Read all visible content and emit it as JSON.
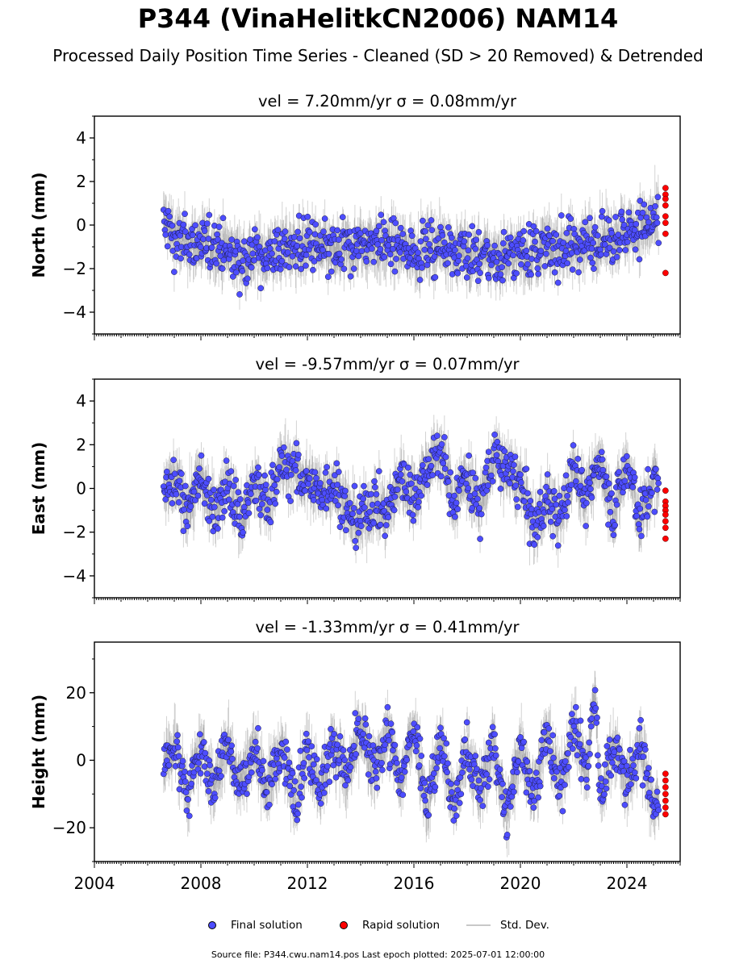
{
  "figure": {
    "title": "P344 (VinaHelitkCN2006) NAM14",
    "subtitle": "Processed Daily Position Time Series - Cleaned (SD > 20 Removed) & Detrended",
    "footer": "Source file: P344.cwu.nam14.pos  Last epoch plotted: 2025-07-01 12:00:00"
  },
  "colors": {
    "final": "#4d4dff",
    "rapid": "#ff0000",
    "stddev": "#808080",
    "axis": "#000000"
  },
  "legend": [
    {
      "label": "Final solution",
      "marker": "dot",
      "color": "#4d4dff"
    },
    {
      "label": "Rapid solution",
      "marker": "dot",
      "color": "#ff0000"
    },
    {
      "label": "Std. Dev.",
      "marker": "line",
      "color": "#c8c8c8"
    }
  ],
  "chart_data": [
    {
      "type": "scatter",
      "title": "vel = 7.20mm/yr   σ = 0.08mm/yr",
      "ylabel": "North (mm)",
      "xlim": [
        2004,
        2026
      ],
      "ylim": [
        -5,
        5
      ],
      "yticks": [
        -4,
        -2,
        0,
        2,
        4
      ],
      "xticks": [
        2004,
        2008,
        2012,
        2016,
        2020,
        2024
      ],
      "show_xtick_labels": false,
      "final_span": [
        2006.6,
        2025.2
      ],
      "rapid_span": [
        2025.3,
        2025.5
      ],
      "series": [
        {
          "name": "Final solution",
          "points": [
            [
              2006.7,
              0.1
            ],
            [
              2007,
              -0.6
            ],
            [
              2007.5,
              -0.9
            ],
            [
              2008,
              -0.8
            ],
            [
              2008.5,
              -1.0
            ],
            [
              2009,
              -1.2
            ],
            [
              2009.5,
              -1.5
            ],
            [
              2010,
              -1.4
            ],
            [
              2010.5,
              -1.3
            ],
            [
              2011,
              -1.1
            ],
            [
              2011.5,
              -1.0
            ],
            [
              2012,
              -0.9
            ],
            [
              2012.5,
              -1.1
            ],
            [
              2013,
              -1.3
            ],
            [
              2013.5,
              -1.2
            ],
            [
              2014,
              -0.9
            ],
            [
              2014.5,
              -0.8
            ],
            [
              2015,
              -1.0
            ],
            [
              2015.5,
              -1.1
            ],
            [
              2016,
              -1.2
            ],
            [
              2016.5,
              -1.0
            ],
            [
              2017,
              -0.9
            ],
            [
              2017.5,
              -1.1
            ],
            [
              2018,
              -1.3
            ],
            [
              2018.5,
              -1.4
            ],
            [
              2019,
              -1.5
            ],
            [
              2019.5,
              -1.4
            ],
            [
              2020,
              -1.3
            ],
            [
              2020.5,
              -1.2
            ],
            [
              2021,
              -1.1
            ],
            [
              2021.5,
              -1.0
            ],
            [
              2022,
              -0.9
            ],
            [
              2022.5,
              -0.8
            ],
            [
              2023,
              -0.6
            ],
            [
              2023.5,
              -0.5
            ],
            [
              2024,
              -0.3
            ],
            [
              2024.5,
              -0.1
            ],
            [
              2025,
              0.2
            ]
          ]
        },
        {
          "name": "Rapid solution",
          "points": [
            [
              2025.45,
              1.7
            ],
            [
              2025.45,
              1.4
            ],
            [
              2025.45,
              1.2
            ],
            [
              2025.45,
              0.9
            ],
            [
              2025.45,
              0.4
            ],
            [
              2025.45,
              0.1
            ],
            [
              2025.45,
              -0.4
            ],
            [
              2025.45,
              -2.2
            ]
          ]
        }
      ]
    },
    {
      "type": "scatter",
      "title": "vel = -9.57mm/yr   σ = 0.07mm/yr",
      "ylabel": "East (mm)",
      "xlim": [
        2004,
        2026
      ],
      "ylim": [
        -5,
        5
      ],
      "yticks": [
        -4,
        -2,
        0,
        2,
        4
      ],
      "xticks": [
        2004,
        2008,
        2012,
        2016,
        2020,
        2024
      ],
      "show_xtick_labels": false,
      "final_span": [
        2006.6,
        2025.2
      ],
      "rapid_span": [
        2025.3,
        2025.5
      ],
      "series": [
        {
          "name": "Final solution",
          "points": [
            [
              2006.7,
              -0.2
            ],
            [
              2007,
              0.3
            ],
            [
              2007.5,
              -0.8
            ],
            [
              2008,
              0.5
            ],
            [
              2008.5,
              -1.2
            ],
            [
              2009,
              0.4
            ],
            [
              2009.5,
              -1.5
            ],
            [
              2010,
              0.2
            ],
            [
              2010.5,
              -0.9
            ],
            [
              2011,
              1.2
            ],
            [
              2011.5,
              0.8
            ],
            [
              2012,
              0.3
            ],
            [
              2012.5,
              -0.1
            ],
            [
              2013,
              0.2
            ],
            [
              2013.5,
              -1.0
            ],
            [
              2014,
              -1.6
            ],
            [
              2014.5,
              -0.5
            ],
            [
              2015,
              -1.2
            ],
            [
              2015.5,
              0.5
            ],
            [
              2016,
              -0.3
            ],
            [
              2016.5,
              1.0
            ],
            [
              2017,
              1.8
            ],
            [
              2017.5,
              -0.5
            ],
            [
              2018,
              0.6
            ],
            [
              2018.5,
              -0.8
            ],
            [
              2019,
              1.5
            ],
            [
              2019.5,
              0.8
            ],
            [
              2020,
              0.2
            ],
            [
              2020.5,
              -1.8
            ],
            [
              2021,
              -0.4
            ],
            [
              2021.5,
              -1.5
            ],
            [
              2022,
              1.0
            ],
            [
              2022.5,
              -0.6
            ],
            [
              2023,
              1.4
            ],
            [
              2023.5,
              -1.2
            ],
            [
              2024,
              1.2
            ],
            [
              2024.5,
              -1.5
            ],
            [
              2025,
              0.3
            ]
          ]
        },
        {
          "name": "Rapid solution",
          "points": [
            [
              2025.45,
              -0.1
            ],
            [
              2025.45,
              -0.6
            ],
            [
              2025.45,
              -0.8
            ],
            [
              2025.45,
              -1.0
            ],
            [
              2025.45,
              -1.2
            ],
            [
              2025.45,
              -1.5
            ],
            [
              2025.45,
              -1.8
            ],
            [
              2025.45,
              -2.3
            ]
          ]
        }
      ]
    },
    {
      "type": "scatter",
      "title": "vel = -1.33mm/yr   σ = 0.41mm/yr",
      "ylabel": "Height (mm)",
      "xlim": [
        2004,
        2026
      ],
      "ylim": [
        -30,
        35
      ],
      "yticks": [
        -20,
        0,
        20
      ],
      "xticks": [
        2004,
        2008,
        2012,
        2016,
        2020,
        2024
      ],
      "show_xtick_labels": true,
      "final_span": [
        2006.6,
        2025.2
      ],
      "rapid_span": [
        2025.3,
        2025.5
      ],
      "series": [
        {
          "name": "Final solution",
          "points": [
            [
              2006.7,
              0
            ],
            [
              2007,
              5
            ],
            [
              2007.5,
              -10
            ],
            [
              2008,
              3
            ],
            [
              2008.5,
              -8
            ],
            [
              2009,
              6
            ],
            [
              2009.5,
              -7
            ],
            [
              2010,
              5
            ],
            [
              2010.5,
              -9
            ],
            [
              2011,
              4
            ],
            [
              2011.5,
              -12
            ],
            [
              2012,
              3
            ],
            [
              2012.5,
              -8
            ],
            [
              2013,
              6
            ],
            [
              2013.5,
              -6
            ],
            [
              2014,
              10
            ],
            [
              2014.5,
              -5
            ],
            [
              2015,
              9
            ],
            [
              2015.5,
              -8
            ],
            [
              2016,
              11
            ],
            [
              2016.5,
              -14
            ],
            [
              2017,
              7
            ],
            [
              2017.5,
              -15
            ],
            [
              2018,
              4
            ],
            [
              2018.5,
              -10
            ],
            [
              2019,
              5
            ],
            [
              2019.5,
              -18
            ],
            [
              2020,
              6
            ],
            [
              2020.5,
              -10
            ],
            [
              2021,
              8
            ],
            [
              2021.5,
              -8
            ],
            [
              2022,
              10
            ],
            [
              2022.5,
              -4
            ],
            [
              2022.8,
              22
            ],
            [
              2023,
              -12
            ],
            [
              2023.5,
              6
            ],
            [
              2024,
              -8
            ],
            [
              2024.5,
              4
            ],
            [
              2025,
              -14
            ]
          ]
        },
        {
          "name": "Rapid solution",
          "points": [
            [
              2025.45,
              -4
            ],
            [
              2025.45,
              -6
            ],
            [
              2025.45,
              -8
            ],
            [
              2025.45,
              -10
            ],
            [
              2025.45,
              -12
            ],
            [
              2025.45,
              -14
            ],
            [
              2025.45,
              -16
            ]
          ]
        }
      ]
    }
  ]
}
